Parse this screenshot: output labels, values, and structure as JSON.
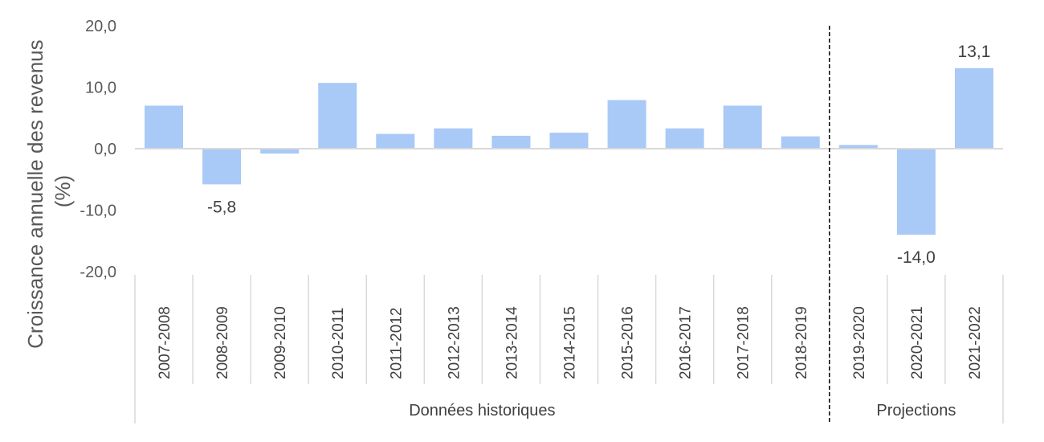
{
  "chart_data": {
    "type": "bar",
    "ylabel_line1": "Croissance annuelle des revenus",
    "ylabel_line2": "(%)",
    "ylim": [
      -20,
      20
    ],
    "yticks": [
      20,
      10,
      0,
      -10,
      -20
    ],
    "ytick_labels": [
      "20,0",
      "10,0",
      "0,0",
      "-10,0",
      "-20,0"
    ],
    "categories": [
      "2007-2008",
      "2008-2009",
      "2009-2010",
      "2010-2011",
      "2011-2012",
      "2012-2013",
      "2013-2014",
      "2014-2015",
      "2015-2016",
      "2016-2017",
      "2017-2018",
      "2018-2019",
      "2019-2020",
      "2020-2021",
      "2021-2022"
    ],
    "values": [
      7.0,
      -5.8,
      -0.8,
      10.7,
      2.4,
      3.3,
      2.1,
      2.6,
      7.9,
      3.3,
      7.0,
      2.0,
      0.6,
      -14.0,
      13.1
    ],
    "data_labels": [
      {
        "index": 1,
        "text": "-5,8"
      },
      {
        "index": 13,
        "text": "-14,0"
      },
      {
        "index": 14,
        "text": "13,1"
      }
    ],
    "groups": [
      {
        "label": "Données historiques",
        "start": 0,
        "end": 11
      },
      {
        "label": "Projections",
        "start": 12,
        "end": 14
      }
    ],
    "colors": {
      "bar": "#A9C9F7",
      "axis": "#D9D9D9",
      "divider": "#000000"
    },
    "grid": false
  }
}
